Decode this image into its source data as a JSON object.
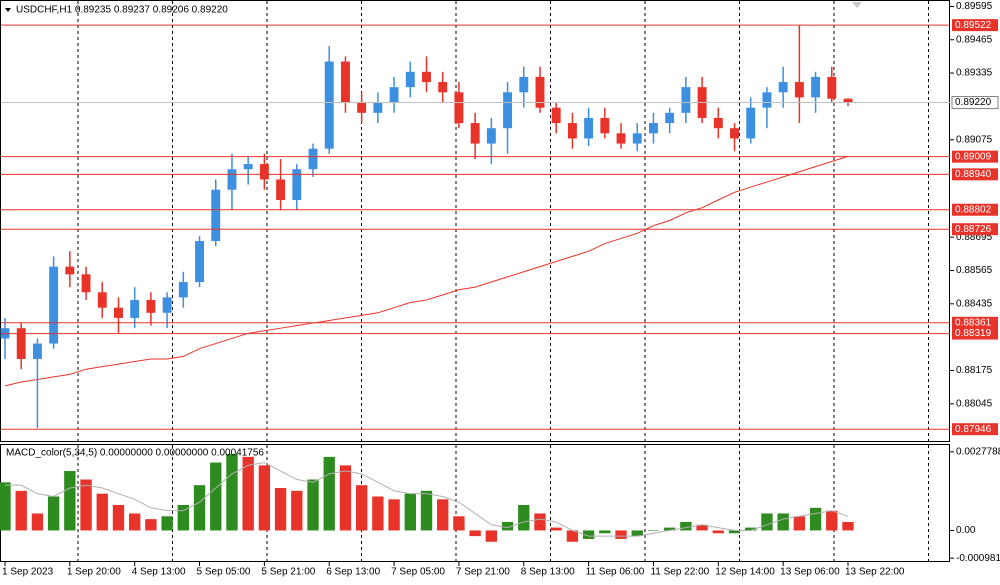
{
  "chart_data": [
    {
      "type": "candlestick",
      "title": "USDCHF,H1  0.89235 0.89237 0.89206 0.89220",
      "categories": [
        "1 Sep 2023",
        null,
        null,
        null,
        "1 Sep 20:00",
        null,
        null,
        null,
        "4 Sep 13:00",
        null,
        null,
        null,
        "5 Sep 05:00",
        null,
        null,
        null,
        "5 Sep 21:00",
        null,
        null,
        null,
        "6 Sep 13:00",
        null,
        null,
        null,
        "7 Sep 05:00",
        null,
        null,
        null,
        "7 Sep 21:00",
        null,
        null,
        null,
        "8 Sep 13:00",
        null,
        null,
        null,
        "11 Sep 06:00",
        null,
        null,
        null,
        "11 Sep 22:00",
        null,
        null,
        null,
        "12 Sep 14:00",
        null,
        null,
        null,
        "13 Sep 06:00",
        null,
        null,
        null,
        "13 Sep 22:00"
      ],
      "open": [
        0.883,
        0.8834,
        0.8822,
        0.8828,
        0.8858,
        0.8855,
        0.8848,
        0.8842,
        0.8838,
        0.8845,
        0.884,
        0.8846,
        0.8852,
        0.8868,
        0.8888,
        0.8896,
        0.8898,
        0.8892,
        0.8884,
        0.8896,
        0.8904,
        0.8938,
        0.8922,
        0.8918,
        0.8922,
        0.8928,
        0.8934,
        0.893,
        0.8926,
        0.8914,
        0.8906,
        0.8912,
        0.8926,
        0.8932,
        0.892,
        0.8914,
        0.8908,
        0.8916,
        0.891,
        0.8906,
        0.891,
        0.8914,
        0.8918,
        0.8928,
        0.8916,
        0.8912,
        0.8908,
        0.892,
        0.8926,
        0.893,
        0.8924,
        0.8932,
        0.89235
      ],
      "high": [
        0.8838,
        0.8836,
        0.883,
        0.8862,
        0.8864,
        0.8858,
        0.8852,
        0.8846,
        0.885,
        0.8848,
        0.8848,
        0.8856,
        0.887,
        0.8892,
        0.8902,
        0.8901,
        0.8902,
        0.89,
        0.8898,
        0.8906,
        0.8944,
        0.894,
        0.8926,
        0.8926,
        0.8932,
        0.8938,
        0.894,
        0.8934,
        0.893,
        0.8918,
        0.8916,
        0.893,
        0.8936,
        0.8936,
        0.8922,
        0.8918,
        0.892,
        0.892,
        0.8914,
        0.8914,
        0.8918,
        0.892,
        0.8932,
        0.8932,
        0.892,
        0.8914,
        0.8924,
        0.8928,
        0.8936,
        0.8952,
        0.8934,
        0.8936,
        0.89237
      ],
      "low": [
        0.8822,
        0.8818,
        0.8795,
        0.8826,
        0.885,
        0.8845,
        0.8838,
        0.8832,
        0.8834,
        0.8835,
        0.8834,
        0.8842,
        0.885,
        0.8866,
        0.888,
        0.889,
        0.8888,
        0.888,
        0.888,
        0.8893,
        0.8902,
        0.8918,
        0.8914,
        0.8914,
        0.8918,
        0.8924,
        0.8926,
        0.8922,
        0.8912,
        0.89,
        0.8898,
        0.8902,
        0.892,
        0.8918,
        0.891,
        0.8904,
        0.8905,
        0.8908,
        0.8904,
        0.8903,
        0.8906,
        0.891,
        0.8914,
        0.8914,
        0.8908,
        0.8903,
        0.8906,
        0.8912,
        0.892,
        0.8914,
        0.8918,
        0.8922,
        0.89206
      ],
      "close": [
        0.8834,
        0.8822,
        0.8828,
        0.8858,
        0.8855,
        0.8848,
        0.8842,
        0.8838,
        0.8845,
        0.884,
        0.8846,
        0.8852,
        0.8868,
        0.8888,
        0.8896,
        0.8898,
        0.8892,
        0.8884,
        0.8896,
        0.8904,
        0.8938,
        0.8922,
        0.8918,
        0.8922,
        0.8928,
        0.8934,
        0.893,
        0.8926,
        0.8914,
        0.8906,
        0.8912,
        0.8926,
        0.8932,
        0.892,
        0.8914,
        0.8908,
        0.8916,
        0.891,
        0.8906,
        0.891,
        0.8914,
        0.8918,
        0.8928,
        0.8916,
        0.8912,
        0.8908,
        0.892,
        0.8926,
        0.893,
        0.8924,
        0.8932,
        0.89235,
        0.8922
      ],
      "up_color": "#3d8fe0",
      "down_color": "#e8332a",
      "ma_values": [
        0.88115,
        0.8813,
        0.8814,
        0.8815,
        0.8816,
        0.8818,
        0.8819,
        0.882,
        0.8821,
        0.8822,
        0.8822,
        0.8823,
        0.8826,
        0.8828,
        0.883,
        0.8832,
        0.8833,
        0.8834,
        0.8835,
        0.8836,
        0.8837,
        0.8838,
        0.8839,
        0.884,
        0.8842,
        0.8844,
        0.8845,
        0.8847,
        0.8849,
        0.885,
        0.8852,
        0.8854,
        0.8856,
        0.8858,
        0.886,
        0.8862,
        0.8864,
        0.8867,
        0.8869,
        0.8871,
        0.8874,
        0.8876,
        0.8879,
        0.8881,
        0.8884,
        0.8887,
        0.8889,
        0.8891,
        0.8893,
        0.8895,
        0.8897,
        0.8899,
        0.8901
      ],
      "ma_color": "#e8332a",
      "levels": [
        0.89522,
        0.89009,
        {
          "value": 0.8894,
          "label": "0.88940"
        },
        0.88802,
        0.88726,
        0.88361,
        0.88319,
        0.87946
      ],
      "level_color": "#e8332a",
      "current_price": {
        "value": 0.8922,
        "label": "0.89220"
      },
      "ylim": [
        0.879,
        0.8962
      ],
      "yticks": [
        0.89595,
        0.89465,
        0.89335,
        0.89075,
        0.88695,
        0.88565,
        0.88435,
        0.88175,
        0.88045
      ],
      "grid": true
    },
    {
      "type": "macd",
      "title": "MACD_color(5,34,5) 0.00000000 0.00000000 0.00041756",
      "values": [
        0.0017,
        0.0014,
        0.0006,
        0.0012,
        0.0021,
        0.0018,
        0.0013,
        0.0009,
        0.0006,
        0.0004,
        0.0005,
        0.0009,
        0.0016,
        0.0024,
        0.0027,
        0.0026,
        0.0023,
        0.0015,
        0.0014,
        0.0018,
        0.0026,
        0.0023,
        0.0016,
        0.0012,
        0.0011,
        0.0013,
        0.0014,
        0.0011,
        0.0005,
        -0.0002,
        -0.0004,
        0.0003,
        0.0009,
        0.0006,
        0.0001,
        -0.0004,
        -0.0003,
        -0.0001,
        -0.0003,
        -0.0002,
        0,
        0.0001,
        0.0003,
        0.0002,
        -0.0001,
        -0.0001,
        0.0001,
        0.0006,
        0.0006,
        0.0005,
        0.0008,
        0.0007,
        0.0003
      ],
      "signal": [
        0.0016,
        0.0016,
        0.0013,
        0.0012,
        0.0015,
        0.0016,
        0.0015,
        0.0013,
        0.0011,
        0.0008,
        0.0007,
        0.0007,
        0.001,
        0.0015,
        0.002,
        0.0023,
        0.0024,
        0.0021,
        0.0018,
        0.0017,
        0.002,
        0.0021,
        0.002,
        0.0017,
        0.0014,
        0.0013,
        0.0013,
        0.0012,
        0.001,
        0.0006,
        0.0002,
        0.0001,
        0.0003,
        0.0004,
        0.0003,
        0,
        -0.0002,
        -0.0002,
        -0.0002,
        -0.0002,
        -0.0001,
        0,
        0.0001,
        0.0002,
        0.0001,
        0,
        0,
        0.0002,
        0.0004,
        0.0005,
        0.0006,
        0.0007,
        0.0005
      ],
      "up_color": "#2e8b20",
      "down_color": "#e8332a",
      "signal_color": "#b0b0b0",
      "ylim": [
        -0.00108,
        0.00302
      ],
      "yticks": [
        0.0027788,
        {
          "value": 0,
          "label": "0.00"
        },
        -0.000981
      ]
    }
  ]
}
